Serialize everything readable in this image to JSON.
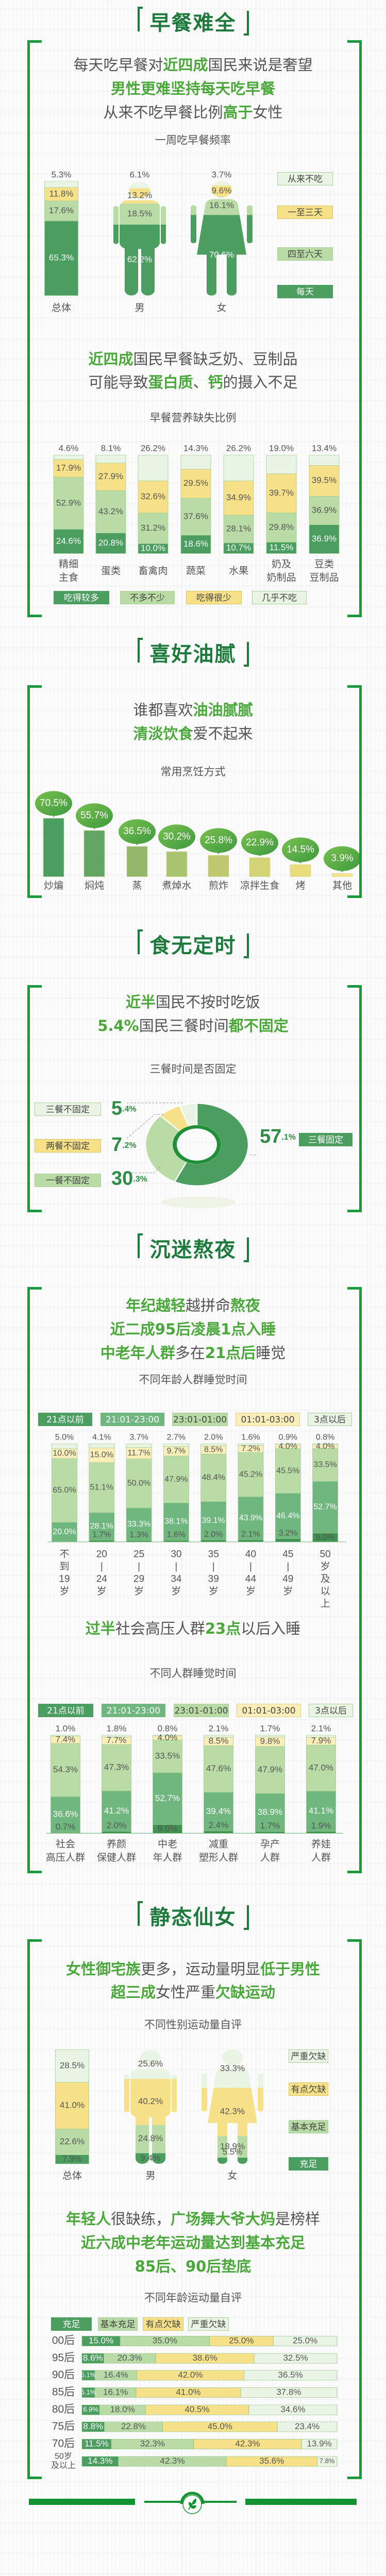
{
  "sections": {
    "breakfast": {
      "title": "早餐难全",
      "headline1": [
        [
          {
            "text": "每天吃早餐对",
            "hl": false
          },
          {
            "text": "近四成",
            "hl": true
          },
          {
            "text": "国民来说是奢望",
            "hl": false
          }
        ],
        [
          {
            "text": "男性更难坚持每天吃早餐",
            "hl": true
          }
        ],
        [
          {
            "text": "从来不吃早餐比例",
            "hl": false
          },
          {
            "text": "高于",
            "hl": true
          },
          {
            "text": "女性",
            "hl": false
          }
        ]
      ],
      "headline2": [
        [
          {
            "text": "近四成",
            "hl": true
          },
          {
            "text": "国民早餐缺乏奶、豆制品",
            "hl": false
          }
        ],
        [
          {
            "text": "可能导致",
            "hl": false
          },
          {
            "text": "蛋白质",
            "hl": true
          },
          {
            "text": "、",
            "hl": false
          },
          {
            "text": "钙",
            "hl": true
          },
          {
            "text": "的摄入不足",
            "hl": false
          }
        ]
      ]
    },
    "greasy": {
      "title": "喜好油腻",
      "headline": [
        [
          {
            "text": "谁都喜欢",
            "hl": false
          },
          {
            "text": "油油腻腻",
            "hl": true
          }
        ],
        [
          {
            "text": "清淡饮食",
            "hl": true
          },
          {
            "text": "爱不起来",
            "hl": false
          }
        ]
      ]
    },
    "meals": {
      "title": "食无定时",
      "headline": [
        [
          {
            "text": "近半",
            "hl": true
          },
          {
            "text": "国民不按时吃饭",
            "hl": false
          }
        ],
        [
          {
            "text": "5.4%",
            "hl": true
          },
          {
            "text": "国民三餐时间",
            "hl": false
          },
          {
            "text": "都不固定",
            "hl": true
          }
        ]
      ]
    },
    "sleep": {
      "title": "沉迷熬夜",
      "headline1": [
        [
          {
            "text": "年纪越轻",
            "hl": true
          },
          {
            "text": "越拼命",
            "hl": false
          },
          {
            "text": "熬夜",
            "hl": true
          }
        ],
        [
          {
            "text": "近二成95后凌晨1点入睡",
            "hl": true
          }
        ],
        [
          {
            "text": "中老年人群",
            "hl": true
          },
          {
            "text": "多在",
            "hl": false
          },
          {
            "text": "21点后",
            "hl": true
          },
          {
            "text": "睡觉",
            "hl": false
          }
        ]
      ],
      "headline2": [
        [
          {
            "text": "过半",
            "hl": true
          },
          {
            "text": "社会高压人群",
            "hl": false
          },
          {
            "text": "23点",
            "hl": true
          },
          {
            "text": "以后入睡",
            "hl": false
          }
        ]
      ]
    },
    "exercise": {
      "title": "静态仙女",
      "headline1": [
        [
          {
            "text": "女性御宅族",
            "hl": true
          },
          {
            "text": "更多，运动量明显",
            "hl": false
          },
          {
            "text": "低于男性",
            "hl": true
          }
        ],
        [
          {
            "text": "超三成",
            "hl": true
          },
          {
            "text": "女性严重",
            "hl": false
          },
          {
            "text": "欠缺运动",
            "hl": true
          }
        ]
      ],
      "headline2": [
        [
          {
            "text": "年轻人",
            "hl": true
          },
          {
            "text": "很缺练，",
            "hl": false
          },
          {
            "text": "广场舞大爷大妈",
            "hl": true
          },
          {
            "text": "是榜样",
            "hl": false
          }
        ],
        [
          {
            "text": "近六成中老年运动量达到基本充足",
            "hl": true
          }
        ],
        [
          {
            "text": "85后、90后垫底",
            "hl": true
          }
        ]
      ]
    }
  },
  "footer": {
    "icon": "leaf-icon"
  },
  "colors": {
    "title": "#1d7a3c",
    "highlight": "#4aa83a",
    "frame": "#1a9a3c",
    "text": "#555555"
  },
  "chart_data": [
    {
      "type": "bar",
      "stacked": true,
      "title": "一周吃早餐频率",
      "categories": [
        "总体",
        "男",
        "女"
      ],
      "series": [
        {
          "name": "每天",
          "color": "#4b9e5f",
          "values": [
            65.3,
            62.2,
            70.6
          ]
        },
        {
          "name": "四至六天",
          "color": "#b9dca6",
          "values": [
            17.6,
            18.5,
            16.1
          ]
        },
        {
          "name": "一至三天",
          "color": "#f6e189",
          "values": [
            11.8,
            13.2,
            9.6
          ]
        },
        {
          "name": "从来不吃",
          "color": "#e9f4e4",
          "values": [
            5.3,
            6.1,
            3.7
          ]
        }
      ],
      "legend": "right"
    },
    {
      "type": "bar",
      "stacked": true,
      "title": "早餐营养缺失比例",
      "categories": [
        "精细\n主食",
        "蛋类",
        "畜禽肉",
        "蔬菜",
        "水果",
        "奶及\n奶制品",
        "豆类\n豆制品"
      ],
      "series": [
        {
          "name": "吃得较多",
          "color": "#4b9e5f",
          "values": [
            24.6,
            20.8,
            10.0,
            18.6,
            10.7,
            11.5,
            36.9
          ]
        },
        {
          "name": "不多不少",
          "color": "#b9dca6",
          "values": [
            52.9,
            43.2,
            31.2,
            37.6,
            28.1,
            29.8,
            36.9
          ]
        },
        {
          "name": "吃得很少",
          "color": "#f6e189",
          "values": [
            17.9,
            27.9,
            32.6,
            29.5,
            34.9,
            39.7,
            39.5
          ]
        },
        {
          "name": "几乎不吃",
          "color": "#e9f4e4",
          "values": [
            4.6,
            8.1,
            26.2,
            14.3,
            26.2,
            19.0,
            13.4
          ]
        }
      ],
      "legend": "bottom"
    },
    {
      "type": "bar",
      "title": "常用烹饪方式",
      "categories": [
        "炒煸",
        "焖炖",
        "蒸",
        "煮焯水",
        "煎炸",
        "凉拌生食",
        "烤",
        "其他"
      ],
      "values": [
        70.5,
        55.7,
        36.5,
        30.2,
        25.8,
        22.9,
        14.5,
        3.9
      ],
      "colors": [
        "#4b9e5f",
        "#62a564",
        "#93b86a",
        "#a9c36f",
        "#bdc86f",
        "#d2d476",
        "#e8dc7c",
        "#f2e48a"
      ]
    },
    {
      "type": "pie",
      "donut": true,
      "title": "三餐时间是否固定",
      "slices": [
        {
          "name": "三餐固定",
          "value": 57.1,
          "color": "#4b9e5f"
        },
        {
          "name": "一餐不固定",
          "value": 30.3,
          "color": "#b9dca6"
        },
        {
          "name": "两餐不固定",
          "value": 7.2,
          "color": "#f6e189"
        },
        {
          "name": "三餐不固定",
          "value": 5.4,
          "color": "#e9f4e4"
        }
      ]
    },
    {
      "type": "bar",
      "stacked": true,
      "title": "不同年龄人群睡觉时间",
      "categories": [
        "不到19岁",
        "20-24岁",
        "25-29岁",
        "30-34岁",
        "35-39岁",
        "40-44岁",
        "45-49岁",
        "50岁及以上"
      ],
      "series": [
        {
          "name": "21点以前",
          "color": "#3f9352",
          "values": [
            null,
            1.7,
            1.3,
            1.6,
            2.0,
            2.1,
            3.2,
            9.0
          ]
        },
        {
          "name": "21:01-23:00",
          "color": "#6fb77f",
          "values": [
            20.0,
            28.1,
            33.3,
            38.1,
            39.1,
            43.9,
            46.4,
            52.7
          ]
        },
        {
          "name": "23:01-01:00",
          "color": "#b9dca6",
          "values": [
            65.0,
            51.1,
            50.0,
            47.9,
            48.4,
            45.2,
            45.5,
            33.5
          ]
        },
        {
          "name": "01:01-03:00",
          "color": "#fbeeb8",
          "values": [
            10.0,
            15.0,
            11.7,
            9.7,
            8.5,
            7.2,
            4.0,
            4.0
          ]
        },
        {
          "name": "3点以后",
          "color": "#e9f4e4",
          "values": [
            5.0,
            4.1,
            3.7,
            2.7,
            2.0,
            1.6,
            0.9,
            0.8
          ]
        }
      ],
      "legend": "top"
    },
    {
      "type": "bar",
      "stacked": true,
      "title": "不同人群睡觉时间",
      "categories": [
        "社会\n高压人群",
        "养颜\n保健人群",
        "中老\n年人群",
        "减重\n塑形人群",
        "孕产\n人群",
        "养娃\n人群"
      ],
      "series": [
        {
          "name": "21点以前",
          "color": "#3f9352",
          "values": [
            0.7,
            2.0,
            9.0,
            2.4,
            1.7,
            1.9
          ]
        },
        {
          "name": "21:01-23:00",
          "color": "#6fb77f",
          "values": [
            36.6,
            41.2,
            52.7,
            39.4,
            38.9,
            41.1
          ]
        },
        {
          "name": "23:01-01:00",
          "color": "#b9dca6",
          "values": [
            54.3,
            47.3,
            33.5,
            47.6,
            47.9,
            47.0
          ]
        },
        {
          "name": "01:01-03:00",
          "color": "#fbeeb8",
          "values": [
            7.4,
            7.7,
            4.0,
            8.5,
            9.8,
            7.9
          ]
        },
        {
          "name": "3点以后",
          "color": "#e9f4e4",
          "values": [
            1.0,
            1.8,
            0.8,
            2.1,
            1.7,
            2.1
          ]
        }
      ],
      "legend": "top"
    },
    {
      "type": "bar",
      "stacked": true,
      "title": "不同性别运动量自评",
      "categories": [
        "总体",
        "男",
        "女"
      ],
      "series": [
        {
          "name": "充足",
          "color": "#4b9e5f",
          "values": [
            7.9,
            9.4,
            5.5
          ]
        },
        {
          "name": "基本充足",
          "color": "#b9dca6",
          "values": [
            22.6,
            24.8,
            18.9
          ]
        },
        {
          "name": "有点欠缺",
          "color": "#f6e189",
          "values": [
            41.0,
            40.2,
            42.3
          ]
        },
        {
          "name": "严重欠缺",
          "color": "#e9f4e4",
          "values": [
            28.5,
            25.6,
            33.3
          ]
        }
      ],
      "legend": "right"
    },
    {
      "type": "bar",
      "stacked": true,
      "orientation": "horizontal",
      "title": "不同年龄运动量自评",
      "categories": [
        "00后",
        "95后",
        "90后",
        "85后",
        "80后",
        "75后",
        "70后",
        "50岁\n及以上"
      ],
      "series": [
        {
          "name": "充足",
          "color": "#4b9e5f",
          "values": [
            15.0,
            8.6,
            5.1,
            5.1,
            6.9,
            8.8,
            11.5,
            14.3
          ]
        },
        {
          "name": "基本充足",
          "color": "#b9dca6",
          "values": [
            35.0,
            20.3,
            16.4,
            16.1,
            18.0,
            22.8,
            32.3,
            42.3
          ]
        },
        {
          "name": "有点欠缺",
          "color": "#f6e189",
          "values": [
            25.0,
            38.6,
            42.0,
            41.0,
            40.5,
            45.0,
            42.3,
            35.6
          ]
        },
        {
          "name": "严重欠缺",
          "color": "#e9f4e4",
          "values": [
            25.0,
            32.5,
            36.5,
            37.8,
            34.6,
            23.4,
            13.9,
            7.8
          ]
        }
      ],
      "legend": "top"
    }
  ]
}
